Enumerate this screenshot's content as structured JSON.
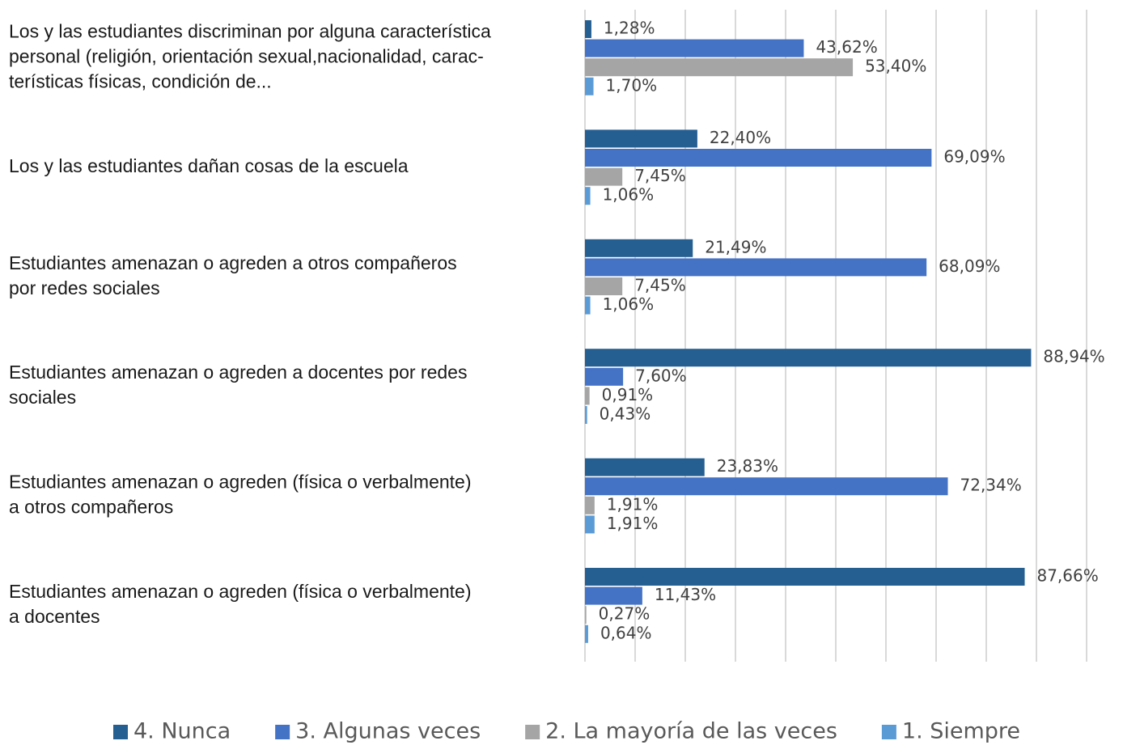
{
  "chart_data": {
    "type": "bar",
    "orientation": "horizontal",
    "categories": [
      [
        "Los y las estudiantes discriminan por alguna característica",
        "personal (religión, orientación sexual,nacionalidad, carac-",
        "terísticas físicas, condición de..."
      ],
      [
        "Los y las estudiantes dañan cosas de la escuela"
      ],
      [
        "Estudiantes amenazan o agreden a otros compañeros",
        "por redes sociales"
      ],
      [
        "Estudiantes amenazan o agreden a docentes por redes",
        "sociales"
      ],
      [
        "Estudiantes amenazan o agreden (física o verbalmente)",
        "a otros compañeros"
      ],
      [
        "Estudiantes amenazan o agreden (física o verbalmente)",
        "a docentes"
      ]
    ],
    "series": [
      {
        "name": "4. Nunca",
        "color": "#255e91",
        "values": [
          1.28,
          22.4,
          21.49,
          88.94,
          23.83,
          87.66
        ],
        "value_labels": [
          "1,28%",
          "22,40%",
          "21,49%",
          "88,94%",
          "23,83%",
          "87,66%"
        ]
      },
      {
        "name": "3. Algunas veces",
        "color": "#4472c4",
        "values": [
          43.62,
          69.09,
          68.09,
          7.6,
          72.34,
          11.43
        ],
        "value_labels": [
          "43,62%",
          "69,09%",
          "68,09%",
          "7,60%",
          "72,34%",
          "11,43%"
        ]
      },
      {
        "name": "2. La mayoría de las veces",
        "color": "#a5a5a5",
        "values": [
          53.4,
          7.45,
          7.45,
          0.91,
          1.91,
          0.27
        ],
        "value_labels": [
          "53,40%",
          "7,45%",
          "7,45%",
          "0,91%",
          "1,91%",
          "0,27%"
        ]
      },
      {
        "name": "1. Siempre",
        "color": "#5b9bd5",
        "values": [
          1.7,
          1.06,
          1.06,
          0.43,
          1.91,
          0.64
        ],
        "value_labels": [
          "1,70%",
          "1,06%",
          "1,06%",
          "0,43%",
          "1,91%",
          "0,64%"
        ]
      }
    ],
    "xlim": [
      0,
      100
    ],
    "xticks": [
      0,
      10,
      20,
      30,
      40,
      50,
      60,
      70,
      80,
      90,
      100
    ],
    "tick_labels": false,
    "grid": true,
    "legend": "bottom"
  }
}
